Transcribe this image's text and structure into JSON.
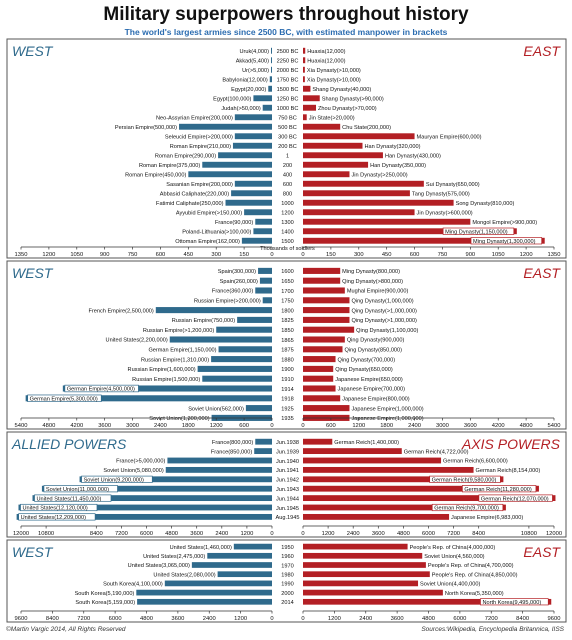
{
  "title": "Military superpowers throughout history",
  "subtitle": "The world's largest armies since 2500 BC, with estimated manpower in brackets",
  "footer_left": "©Martin Vargic 2014, All Rights Reserved",
  "footer_right": "Sources:Wikipedia, Encyclopedia Britannica, IISS",
  "colors": {
    "west": "#2f6a8c",
    "east": "#b31f24",
    "frame": "#555555",
    "header_west": "#2f6a8c",
    "header_east": "#b31f24"
  },
  "chart_data": [
    {
      "type": "bar",
      "left_header": "WEST",
      "right_header": "EAST",
      "axis_center_label": "Thousands of soldiers",
      "ticks": [
        1350,
        1200,
        1050,
        900,
        750,
        600,
        450,
        300,
        150,
        0
      ],
      "xmax": 1350,
      "rows": [
        {
          "y": "2500 BC",
          "left_label": "Uruk(4,000)",
          "left_value": 4,
          "right_label": "Huaxia(12,000)",
          "right_value": 12
        },
        {
          "y": "2250 BC",
          "left_label": "Akkad(5,400)",
          "left_value": 5.4,
          "right_label": "Huaxia(12,000)",
          "right_value": 12
        },
        {
          "y": "2000 BC",
          "left_label": "Ur(>5,000)",
          "left_value": 5,
          "right_label": "Xia Dynasty(>10,000)",
          "right_value": 10
        },
        {
          "y": "1750 BC",
          "left_label": "Babylonia(12,000)",
          "left_value": 12,
          "right_label": "Xia Dynasty(>10,000)",
          "right_value": 10
        },
        {
          "y": "1500 BC",
          "left_label": "Egypt(20,000)",
          "left_value": 20,
          "right_label": "Shang Dynasty(40,000)",
          "right_value": 40
        },
        {
          "y": "1250 BC",
          "left_label": "Egypt(100,000)",
          "left_value": 100,
          "right_label": "Shang Dynasty(>90,000)",
          "right_value": 90
        },
        {
          "y": "1000 BC",
          "left_label": "Judah(>50,000)",
          "left_value": 50,
          "right_label": "Zhou Dynasty(>70,000)",
          "right_value": 70
        },
        {
          "y": "750 BC",
          "left_label": "Neo-Assyrian Empire(200,000)",
          "left_value": 200,
          "right_label": "Jin State(>20,000)",
          "right_value": 20
        },
        {
          "y": "500 BC",
          "left_label": "Persian Empire(500,000)",
          "left_value": 500,
          "right_label": "Chu State(200,000)",
          "right_value": 200
        },
        {
          "y": "300 BC",
          "left_label": "Seleucid Empire(>200,000)",
          "left_value": 200,
          "right_label": "Mauryan Empire(600,000)",
          "right_value": 600
        },
        {
          "y": "200 BC",
          "left_label": "Roman Empire(210,000)",
          "left_value": 210,
          "right_label": "Han Dynasty(320,000)",
          "right_value": 320
        },
        {
          "y": "1",
          "left_label": "Roman Empire(290,000)",
          "left_value": 290,
          "right_label": "Han Dynasty(430,000)",
          "right_value": 430
        },
        {
          "y": "200",
          "left_label": "Roman Empire(375,000)",
          "left_value": 375,
          "right_label": "Han Dynasty(350,000)",
          "right_value": 350
        },
        {
          "y": "400",
          "left_label": "Roman Empire(450,000)",
          "left_value": 450,
          "right_label": "Jin Dynasty(>250,000)",
          "right_value": 250
        },
        {
          "y": "600",
          "left_label": "Sasanian Empire(200,000)",
          "left_value": 200,
          "right_label": "Sui Dynasty(650,000)",
          "right_value": 650
        },
        {
          "y": "800",
          "left_label": "Abbasid Caliphate(220,000)",
          "left_value": 220,
          "right_label": "Tang Dynasty(575,000)",
          "right_value": 575
        },
        {
          "y": "1000",
          "left_label": "Fatimid Caliphate(250,000)",
          "left_value": 250,
          "right_label": "Song Dynasty(810,000)",
          "right_value": 810
        },
        {
          "y": "1200",
          "left_label": "Ayyubid Empire(>150,000)",
          "left_value": 150,
          "right_label": "Jin Dynasty(>600,000)",
          "right_value": 600
        },
        {
          "y": "1300",
          "left_label": "France(90,000)",
          "left_value": 90,
          "right_label": "Mongol Empire(>900,000)",
          "right_value": 900
        },
        {
          "y": "1400",
          "left_label": "Poland-Lithuania(>100,000)",
          "left_value": 100,
          "right_label": "Ming Dynasty(1,150,000)",
          "right_value": 1150,
          "right_boxed": true
        },
        {
          "y": "1500",
          "left_label": "Ottoman Empire(162,000)",
          "left_value": 162,
          "right_label": "Ming Dynasty(1,300,000)",
          "right_value": 1300,
          "right_boxed": true
        }
      ]
    },
    {
      "type": "bar",
      "left_header": "WEST",
      "right_header": "EAST",
      "ticks": [
        5400,
        4800,
        4200,
        3600,
        3000,
        2400,
        1800,
        1200,
        600,
        0
      ],
      "xmax": 5400,
      "rows": [
        {
          "y": "1600",
          "left_label": "Spain(300,000)",
          "left_value": 300,
          "right_label": "Ming Dynasty(800,000)",
          "right_value": 800
        },
        {
          "y": "1650",
          "left_label": "Spain(260,000)",
          "left_value": 260,
          "right_label": "Qing Dynasty(>800,000)",
          "right_value": 800
        },
        {
          "y": "1700",
          "left_label": "France(360,000)",
          "left_value": 360,
          "right_label": "Mughal Empire(900,000)",
          "right_value": 900
        },
        {
          "y": "1750",
          "left_label": "Russian Empire(>200,000)",
          "left_value": 200,
          "right_label": "Qing Dynasty(1,000,000)",
          "right_value": 1000
        },
        {
          "y": "1800",
          "left_label": "French Empire(2,500,000)",
          "left_value": 2500,
          "right_label": "Qing Dynasty(>1,000,000)",
          "right_value": 1000
        },
        {
          "y": "1825",
          "left_label": "Russian Empire(750,000)",
          "left_value": 750,
          "right_label": "Qing Dynasty(>1,000,000)",
          "right_value": 1000
        },
        {
          "y": "1850",
          "left_label": "Russian Empire(>1,200,000)",
          "left_value": 1200,
          "right_label": "Qing Dynasty(1,100,000)",
          "right_value": 1100
        },
        {
          "y": "1865",
          "left_label": "United States(2,200,000)",
          "left_value": 2200,
          "right_label": "Qing Dynasty(900,000)",
          "right_value": 900
        },
        {
          "y": "1875",
          "left_label": "German Empire(1,150,000)",
          "left_value": 1150,
          "right_label": "Qing Dynasty(850,000)",
          "right_value": 850
        },
        {
          "y": "1880",
          "left_label": "Russian Empire(1,310,000)",
          "left_value": 1310,
          "right_label": "Qing Dynasty(700,000)",
          "right_value": 700
        },
        {
          "y": "1900",
          "left_label": "Russian Empire(1,600,000)",
          "left_value": 1600,
          "right_label": "Qing Dynasty(650,000)",
          "right_value": 650
        },
        {
          "y": "1910",
          "left_label": "Russian Empire(1,500,000)",
          "left_value": 1500,
          "right_label": "Japanese Empire(650,000)",
          "right_value": 650
        },
        {
          "y": "1914",
          "left_label": "German Empire(4,500,000)",
          "left_value": 4500,
          "left_boxed": true,
          "right_label": "Japanese Empire(700,000)",
          "right_value": 700
        },
        {
          "y": "1918",
          "left_label": "German Empire(5,300,000)",
          "left_value": 5300,
          "left_boxed": true,
          "right_label": "Japanese Empire(800,000)",
          "right_value": 800
        },
        {
          "y": "1925",
          "left_label": "Soviet Union(562,000)",
          "left_value": 562,
          "right_label": "Japanese Empire(1,000,000)",
          "right_value": 1000
        },
        {
          "y": "1935",
          "left_label": "Soviet Union(1,300,000)",
          "left_value": 1300,
          "right_label": "Japanese Empire(1,000,000)",
          "right_value": 1000
        }
      ]
    },
    {
      "type": "bar",
      "left_header": "ALLIED POWERS",
      "right_header": "AXIS POWERS",
      "ticks": [
        12000,
        10800,
        8400,
        7200,
        6000,
        4800,
        3600,
        2400,
        1200,
        0
      ],
      "xmax": 12000,
      "rows": [
        {
          "y": "Jun.1938",
          "left_label": "France(800,000)",
          "left_value": 800,
          "right_label": "German Reich(1,400,000)",
          "right_value": 1400
        },
        {
          "y": "Jun.1939",
          "left_label": "France(850,000)",
          "left_value": 850,
          "right_label": "German Reich(4,722,000)",
          "right_value": 4722
        },
        {
          "y": "Jun.1940",
          "left_label": "France(>5,000,000)",
          "left_value": 5000,
          "right_label": "German Reich(6,600,000)",
          "right_value": 6600
        },
        {
          "y": "Jun.1941",
          "left_label": "Soviet Union(5,080,000)",
          "left_value": 5080,
          "right_label": "German Reich(8,154,000)",
          "right_value": 8154
        },
        {
          "y": "Jun.1942",
          "left_label": "Soviet Union(9,200,000)",
          "left_value": 9200,
          "left_boxed": true,
          "right_label": "German Reich(9,580,000)",
          "right_value": 9580,
          "right_boxed": true
        },
        {
          "y": "Jun.1943",
          "left_label": "Soviet Union(11,000,000)",
          "left_value": 11000,
          "left_boxed": true,
          "right_label": "German Reich(11,280,000)",
          "right_value": 11280,
          "right_boxed": true
        },
        {
          "y": "Jun.1944",
          "left_label": "United States(11,450,000)",
          "left_value": 11450,
          "left_boxed": true,
          "right_label": "German Reich(12,070,000)",
          "right_value": 12070,
          "right_boxed": true
        },
        {
          "y": "Jun.1945",
          "left_label": "United States(12,120,000)",
          "left_value": 12120,
          "left_boxed": true,
          "right_label": "German Reich(9,700,000)",
          "right_value": 9700,
          "right_boxed": true
        },
        {
          "y": "Aug.1945",
          "left_label": "United States(12,209,000)",
          "left_value": 12209,
          "left_boxed": true,
          "right_label": "Japanese Empire(6,983,000)",
          "right_value": 6983
        }
      ]
    },
    {
      "type": "bar",
      "left_header": "WEST",
      "right_header": "EAST",
      "ticks": [
        9600,
        8400,
        7200,
        6000,
        4800,
        3600,
        2400,
        1200,
        0
      ],
      "xmax": 9600,
      "rows": [
        {
          "y": "1950",
          "left_label": "United States(1,460,000)",
          "left_value": 1460,
          "right_label": "People's Rep. of China(4,000,000)",
          "right_value": 4000
        },
        {
          "y": "1960",
          "left_label": "United States(2,475,000)",
          "left_value": 2475,
          "right_label": "Soviet Union(4,560,000)",
          "right_value": 4560
        },
        {
          "y": "1970",
          "left_label": "United States(3,065,000)",
          "left_value": 3065,
          "right_label": "People's Rep. of China(4,700,000)",
          "right_value": 4700
        },
        {
          "y": "1980",
          "left_label": "United States(2,080,000)",
          "left_value": 2080,
          "right_label": "People's Rep. of China(4,850,000)",
          "right_value": 4850
        },
        {
          "y": "1990",
          "left_label": "South Korea(4,100,000)",
          "left_value": 4100,
          "right_label": "Soviet Union(4,400,000)",
          "right_value": 4400
        },
        {
          "y": "2000",
          "left_label": "South Korea(5,190,000)",
          "left_value": 5190,
          "right_label": "North Korea(5,350,000)",
          "right_value": 5350
        },
        {
          "y": "2014",
          "left_label": "South Korea(5,159,000)",
          "left_value": 5159,
          "right_label": "North Korea(9,495,000)",
          "right_value": 9495,
          "right_boxed": true
        }
      ]
    }
  ]
}
